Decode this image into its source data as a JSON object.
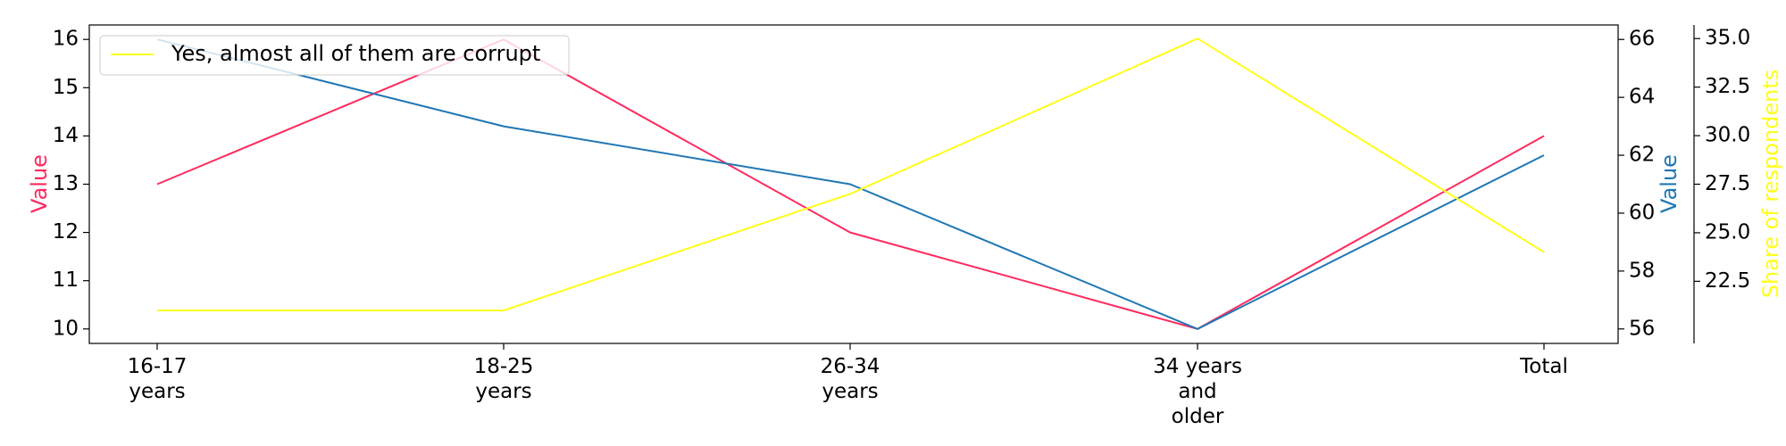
{
  "chart_data": {
    "type": "line",
    "categories": [
      [
        "16-17",
        "years"
      ],
      [
        "18-25",
        "years"
      ],
      [
        "26-34",
        "years"
      ],
      [
        "34 years",
        "and",
        "older"
      ],
      [
        "Total"
      ]
    ],
    "series": [
      {
        "axis": "left",
        "color": "#ff2a5f",
        "values": [
          13,
          16,
          12,
          10,
          14
        ]
      },
      {
        "axis": "right1",
        "color": "#1f77b4",
        "values": [
          66,
          63,
          61,
          56,
          62
        ]
      },
      {
        "axis": "right2",
        "name": "Yes, almost all of them are corrupt",
        "color": "#ffff1a",
        "values": [
          21,
          21,
          27,
          35,
          24
        ]
      }
    ],
    "axes": {
      "left": {
        "label": "Value",
        "color": "#ff2a5f",
        "ylim": [
          9.7,
          16.3
        ],
        "ticks": [
          10,
          11,
          12,
          13,
          14,
          15,
          16
        ],
        "tick_labels": [
          "10",
          "11",
          "12",
          "13",
          "14",
          "15",
          "16"
        ]
      },
      "right1": {
        "label": "Value",
        "color": "#1f77b4",
        "ylim": [
          55.5,
          66.5
        ],
        "ticks": [
          56,
          58,
          60,
          62,
          64,
          66
        ],
        "tick_labels": [
          "56",
          "58",
          "60",
          "62",
          "64",
          "66"
        ]
      },
      "right2": {
        "label": "Share of respondents",
        "color": "#ffff1a",
        "ylim": [
          19.3,
          35.7
        ],
        "ticks": [
          22.5,
          25,
          27.5,
          30,
          32.5,
          35
        ],
        "tick_labels": [
          "22.5",
          "25.0",
          "27.5",
          "30.0",
          "32.5",
          "35.0"
        ]
      }
    },
    "legend": {
      "placement": "top-left"
    },
    "grid": false
  }
}
